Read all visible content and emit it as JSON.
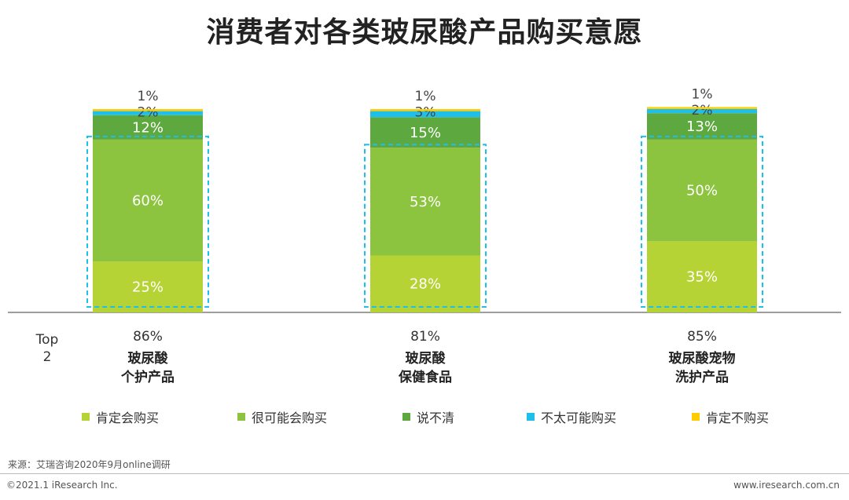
{
  "title": "消费者对各类玻尿酸产品购买意愿",
  "top2_label": "Top 2",
  "chart_data": {
    "type": "bar",
    "stacked": true,
    "categories": [
      [
        "玻尿酸",
        "个护产品"
      ],
      [
        "玻尿酸",
        "保健食品"
      ],
      [
        "玻尿酸宠物",
        "洗护产品"
      ]
    ],
    "series": [
      {
        "name": "肯定会购买",
        "color": "#b5d334",
        "values": [
          25,
          28,
          35
        ]
      },
      {
        "name": "很可能会购买",
        "color": "#8cc43f",
        "values": [
          60,
          53,
          50
        ]
      },
      {
        "name": "说不清",
        "color": "#5ea93f",
        "values": [
          12,
          15,
          13
        ]
      },
      {
        "name": "不太可能购买",
        "color": "#1ec0ea",
        "values": [
          2,
          3,
          2
        ]
      },
      {
        "name": "肯定不购买",
        "color": "#ffcc00",
        "values": [
          1,
          1,
          1
        ]
      }
    ],
    "top2": [
      "86%",
      "81%",
      "85%"
    ],
    "value_suffix": "%",
    "ylim": [
      0,
      100
    ],
    "highlight_color": "#1ec0ea"
  },
  "legend_items": [
    "肯定会购买",
    "很可能会购买",
    "说不清",
    "不太可能购买",
    "肯定不购买"
  ],
  "source": "来源：艾瑞咨询2020年9月online调研",
  "copyright": "©2021.1 iResearch Inc.",
  "website": "www.iresearch.com.cn"
}
